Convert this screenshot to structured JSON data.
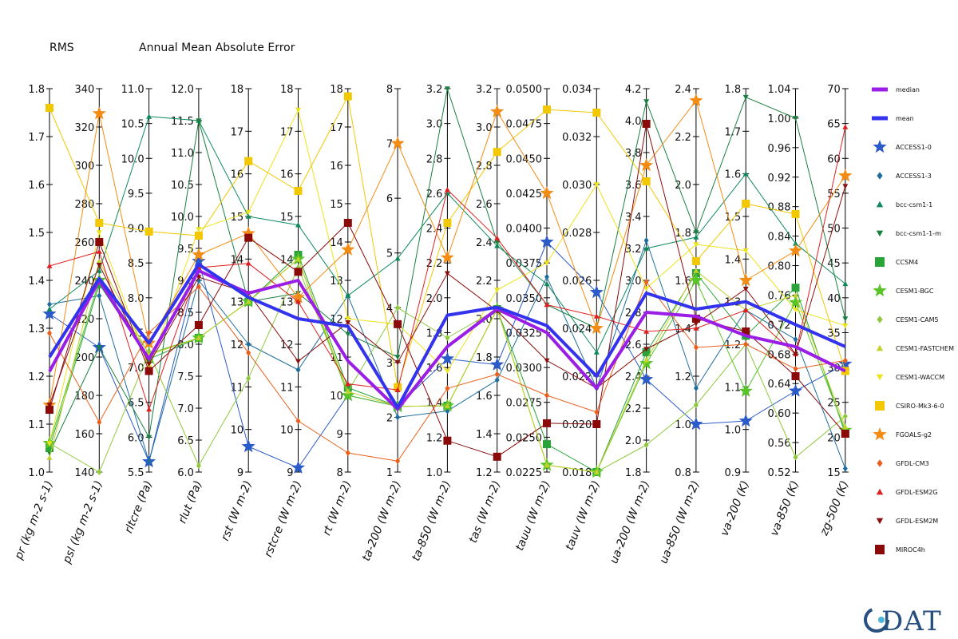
{
  "header": {
    "left_label": "RMS",
    "title": "Annual Mean Absolute Error"
  },
  "logo_text": "DAT",
  "chart_data": {
    "type": "parallel-coordinates",
    "title": "Annual Mean Absolute Error",
    "axes": [
      {
        "label": "pr (kg m-2 s-1)",
        "min": 1.0,
        "max": 1.8,
        "ticks": [
          "1.0",
          "1.1",
          "1.2",
          "1.3",
          "1.4",
          "1.5",
          "1.6",
          "1.7",
          "1.8"
        ]
      },
      {
        "label": "psl (kg m-2 s-1)",
        "min": 140,
        "max": 340,
        "ticks": [
          "140",
          "160",
          "180",
          "200",
          "220",
          "240",
          "260",
          "280",
          "300",
          "320",
          "340"
        ]
      },
      {
        "label": "rltcre (Pa)",
        "min": 5.5,
        "max": 11.0,
        "ticks": [
          "5.5",
          "6.0",
          "6.5",
          "7.0",
          "7.5",
          "8.0",
          "8.5",
          "9.0",
          "9.5",
          "10.0",
          "10.5",
          "11.0"
        ]
      },
      {
        "label": "rlut (Pa)",
        "min": 6.0,
        "max": 12.0,
        "ticks": [
          "6.0",
          "6.5",
          "7.0",
          "7.5",
          "8.0",
          "8.5",
          "9.0",
          "9.5",
          "10.0",
          "10.5",
          "11.0",
          "11.5",
          "12.0"
        ]
      },
      {
        "label": "rst (W m-2)",
        "min": 9,
        "max": 18,
        "ticks": [
          "9",
          "10",
          "11",
          "12",
          "13",
          "14",
          "15",
          "16",
          "17",
          "18"
        ]
      },
      {
        "label": "rstcre (W m-2)",
        "min": 9,
        "max": 18,
        "ticks": [
          "9",
          "10",
          "11",
          "12",
          "13",
          "14",
          "15",
          "16",
          "17",
          "18"
        ]
      },
      {
        "label": "rt (W m-2)",
        "min": 8,
        "max": 18,
        "ticks": [
          "8",
          "9",
          "10",
          "11",
          "12",
          "13",
          "14",
          "15",
          "16",
          "17",
          "18"
        ]
      },
      {
        "label": "ta-200 (W m-2)",
        "min": 1,
        "max": 8,
        "ticks": [
          "1",
          "2",
          "3",
          "4",
          "5",
          "6",
          "7",
          "8"
        ]
      },
      {
        "label": "ta-850 (W m-2)",
        "min": 1.0,
        "max": 3.2,
        "ticks": [
          "1.0",
          "1.2",
          "1.4",
          "1.6",
          "1.8",
          "2.0",
          "2.2",
          "2.4",
          "2.6",
          "2.8",
          "3.0",
          "3.2"
        ]
      },
      {
        "label": "tas (W m-2)",
        "min": 1.2,
        "max": 3.2,
        "ticks": [
          "1.2",
          "1.4",
          "1.6",
          "1.8",
          "2.0",
          "2.2",
          "2.4",
          "2.6",
          "2.8",
          "3.0",
          "3.2"
        ]
      },
      {
        "label": "tauu (W m-2)",
        "min": 0.0225,
        "max": 0.05,
        "ticks": [
          "0.0225",
          "0.0250",
          "0.0275",
          "0.0300",
          "0.0325",
          "0.0350",
          "0.0375",
          "0.0400",
          "0.0425",
          "0.0450",
          "0.0475",
          "0.0500"
        ]
      },
      {
        "label": "tauv (W m-2)",
        "min": 0.018,
        "max": 0.034,
        "ticks": [
          "0.018",
          "0.020",
          "0.022",
          "0.024",
          "0.026",
          "0.028",
          "0.030",
          "0.032",
          "0.034"
        ]
      },
      {
        "label": "ua-200 (W m-2)",
        "min": 1.8,
        "max": 4.2,
        "ticks": [
          "1.8",
          "2.0",
          "2.2",
          "2.4",
          "2.6",
          "2.8",
          "3.0",
          "3.2",
          "3.4",
          "3.6",
          "3.8",
          "4.0",
          "4.2"
        ]
      },
      {
        "label": "ua-850 (W m-2)",
        "min": 0.8,
        "max": 2.4,
        "ticks": [
          "0.8",
          "1.0",
          "1.2",
          "1.4",
          "1.6",
          "1.8",
          "2.0",
          "2.2",
          "2.4"
        ]
      },
      {
        "label": "va-200 (K)",
        "min": 0.9,
        "max": 1.8,
        "ticks": [
          "0.9",
          "1.0",
          "1.1",
          "1.2",
          "1.3",
          "1.4",
          "1.5",
          "1.6",
          "1.7",
          "1.8"
        ]
      },
      {
        "label": "va-850 (K)",
        "min": 0.52,
        "max": 1.04,
        "ticks": [
          "0.52",
          "0.56",
          "0.60",
          "0.64",
          "0.68",
          "0.72",
          "0.76",
          "0.80",
          "0.84",
          "0.88",
          "0.92",
          "0.96",
          "1.00",
          "1.04"
        ]
      },
      {
        "label": "zg-500 (K)",
        "min": 15,
        "max": 70,
        "ticks": [
          "15",
          "20",
          "25",
          "30",
          "35",
          "40",
          "45",
          "50",
          "55",
          "60",
          "65",
          "70"
        ]
      }
    ],
    "series": [
      {
        "name": "median",
        "color": "#9b1ee6",
        "marker": "none",
        "width": 4,
        "values": [
          1.21,
          240,
          7.12,
          9.15,
          13.2,
          13.5,
          10.9,
          2.15,
          1.72,
          2.05,
          0.0325,
          0.0215,
          2.8,
          1.45,
          1.22,
          0.69,
          29.5
        ]
      },
      {
        "name": "mean",
        "color": "#3333ee",
        "marker": "none",
        "width": 4,
        "values": [
          1.24,
          241,
          7.35,
          9.25,
          13.1,
          12.6,
          11.8,
          2.18,
          1.9,
          2.06,
          0.033,
          0.022,
          2.92,
          1.48,
          1.3,
          0.72,
          33.0
        ]
      },
      {
        "name": "ACCESS1-0",
        "color": "#2b5bc9",
        "marker": "star",
        "values": [
          1.33,
          205,
          5.65,
          9.3,
          9.6,
          9.1,
          10.0,
          2.2,
          1.65,
          1.76,
          0.039,
          0.0255,
          2.38,
          1.0,
          1.02,
          0.63,
          30.5
        ]
      },
      {
        "name": "ACCESS1-3",
        "color": "#1f6e9e",
        "marker": "diamond",
        "values": [
          1.35,
          232,
          5.65,
          9.0,
          12.0,
          11.4,
          12.6,
          2.0,
          1.35,
          1.68,
          0.0365,
          0.0215,
          3.25,
          1.15,
          1.28,
          0.7,
          15.5
        ]
      },
      {
        "name": "bcc-csm1-1",
        "color": "#0e8a5a",
        "marker": "triangle-up",
        "values": [
          1.34,
          245,
          10.6,
          11.5,
          15.0,
          14.8,
          12.6,
          4.9,
          2.6,
          2.38,
          0.036,
          0.023,
          3.2,
          1.78,
          1.6,
          0.83,
          42.0
        ]
      },
      {
        "name": "bcc-csm1-1-m",
        "color": "#1a8040",
        "marker": "triangle-down",
        "values": [
          1.04,
          205,
          6.0,
          11.5,
          13.0,
          13.2,
          11.6,
          3.1,
          3.2,
          2.4,
          0.0345,
          0.024,
          4.12,
          1.8,
          1.78,
          1.0,
          37.0
        ]
      },
      {
        "name": "CCSM4",
        "color": "#29a33a",
        "marker": "square",
        "values": [
          1.05,
          238,
          7.12,
          8.1,
          13.0,
          14.1,
          10.2,
          2.2,
          1.38,
          2.05,
          0.0245,
          0.018,
          2.55,
          1.63,
          1.22,
          0.77,
          20.5
        ]
      },
      {
        "name": "CESM1-BGC",
        "color": "#58c427",
        "marker": "star",
        "values": [
          1.06,
          240,
          7.2,
          8.1,
          13.0,
          14.0,
          10.0,
          2.2,
          1.38,
          2.05,
          0.023,
          0.018,
          2.48,
          1.6,
          1.09,
          0.75,
          21.0
        ]
      },
      {
        "name": "CESM1-CAM5",
        "color": "#8ec93c",
        "marker": "diamond",
        "values": [
          1.06,
          140,
          7.22,
          6.1,
          11.2,
          13.8,
          10.1,
          4.0,
          1.77,
          2.05,
          0.023,
          0.018,
          1.97,
          1.08,
          1.2,
          0.54,
          23.0
        ]
      },
      {
        "name": "CESM1-FASTCHEM",
        "color": "#c3d22a",
        "marker": "triangle-up",
        "values": [
          1.03,
          250,
          7.18,
          8.1,
          13.0,
          14.0,
          10.1,
          2.2,
          1.38,
          2.05,
          0.023,
          0.018,
          2.5,
          1.64,
          1.28,
          0.76,
          21.5
        ]
      },
      {
        "name": "CESM1-WACCM",
        "color": "#ece41a",
        "marker": "triangle-down",
        "values": [
          1.06,
          265,
          7.0,
          9.8,
          15.1,
          17.5,
          12.0,
          3.7,
          1.58,
          2.15,
          0.0375,
          0.03,
          2.95,
          1.75,
          1.42,
          0.74,
          36.0
        ]
      },
      {
        "name": "CSIRO-Mk3-6-0",
        "color": "#f2c800",
        "marker": "square",
        "values": [
          1.76,
          270,
          8.95,
          9.7,
          16.3,
          15.6,
          17.8,
          2.55,
          2.43,
          2.87,
          0.0485,
          0.033,
          3.62,
          1.68,
          1.53,
          0.87,
          29.5
        ]
      },
      {
        "name": "FGOALS-g2",
        "color": "#f28c14",
        "marker": "star",
        "values": [
          1.14,
          327,
          7.35,
          9.4,
          14.6,
          13.1,
          13.8,
          7.0,
          2.23,
          3.08,
          0.0425,
          0.024,
          3.72,
          2.35,
          1.35,
          0.82,
          57.5
        ]
      },
      {
        "name": "GFDL-CM3",
        "color": "#e8601c",
        "marker": "diamond",
        "values": [
          1.29,
          166,
          7.5,
          8.9,
          11.8,
          10.2,
          8.5,
          1.2,
          1.48,
          1.71,
          0.028,
          0.0205,
          2.99,
          1.32,
          1.2,
          0.66,
          31.0
        ]
      },
      {
        "name": "GFDL-ESM2G",
        "color": "#e02020",
        "marker": "triangle-up",
        "values": [
          1.43,
          255,
          6.4,
          9.2,
          13.9,
          13.0,
          10.3,
          2.5,
          2.62,
          2.42,
          0.0345,
          0.0245,
          2.68,
          1.4,
          1.28,
          0.68,
          64.5
        ]
      },
      {
        "name": "GFDL-ESM2M",
        "color": "#8b1010",
        "marker": "triangle-down",
        "values": [
          1.14,
          248,
          7.05,
          9.05,
          13.2,
          11.6,
          11.9,
          3.0,
          2.14,
          2.04,
          0.0305,
          0.0215,
          2.57,
          1.42,
          1.33,
          0.68,
          56.0
        ]
      },
      {
        "name": "MIROC4h",
        "color": "#8a0a0a",
        "marker": "square",
        "values": [
          1.13,
          260,
          6.95,
          8.3,
          14.5,
          13.7,
          14.5,
          3.7,
          1.18,
          1.28,
          0.026,
          0.02,
          3.98,
          1.44,
          1.23,
          0.65,
          20.5
        ]
      }
    ]
  }
}
